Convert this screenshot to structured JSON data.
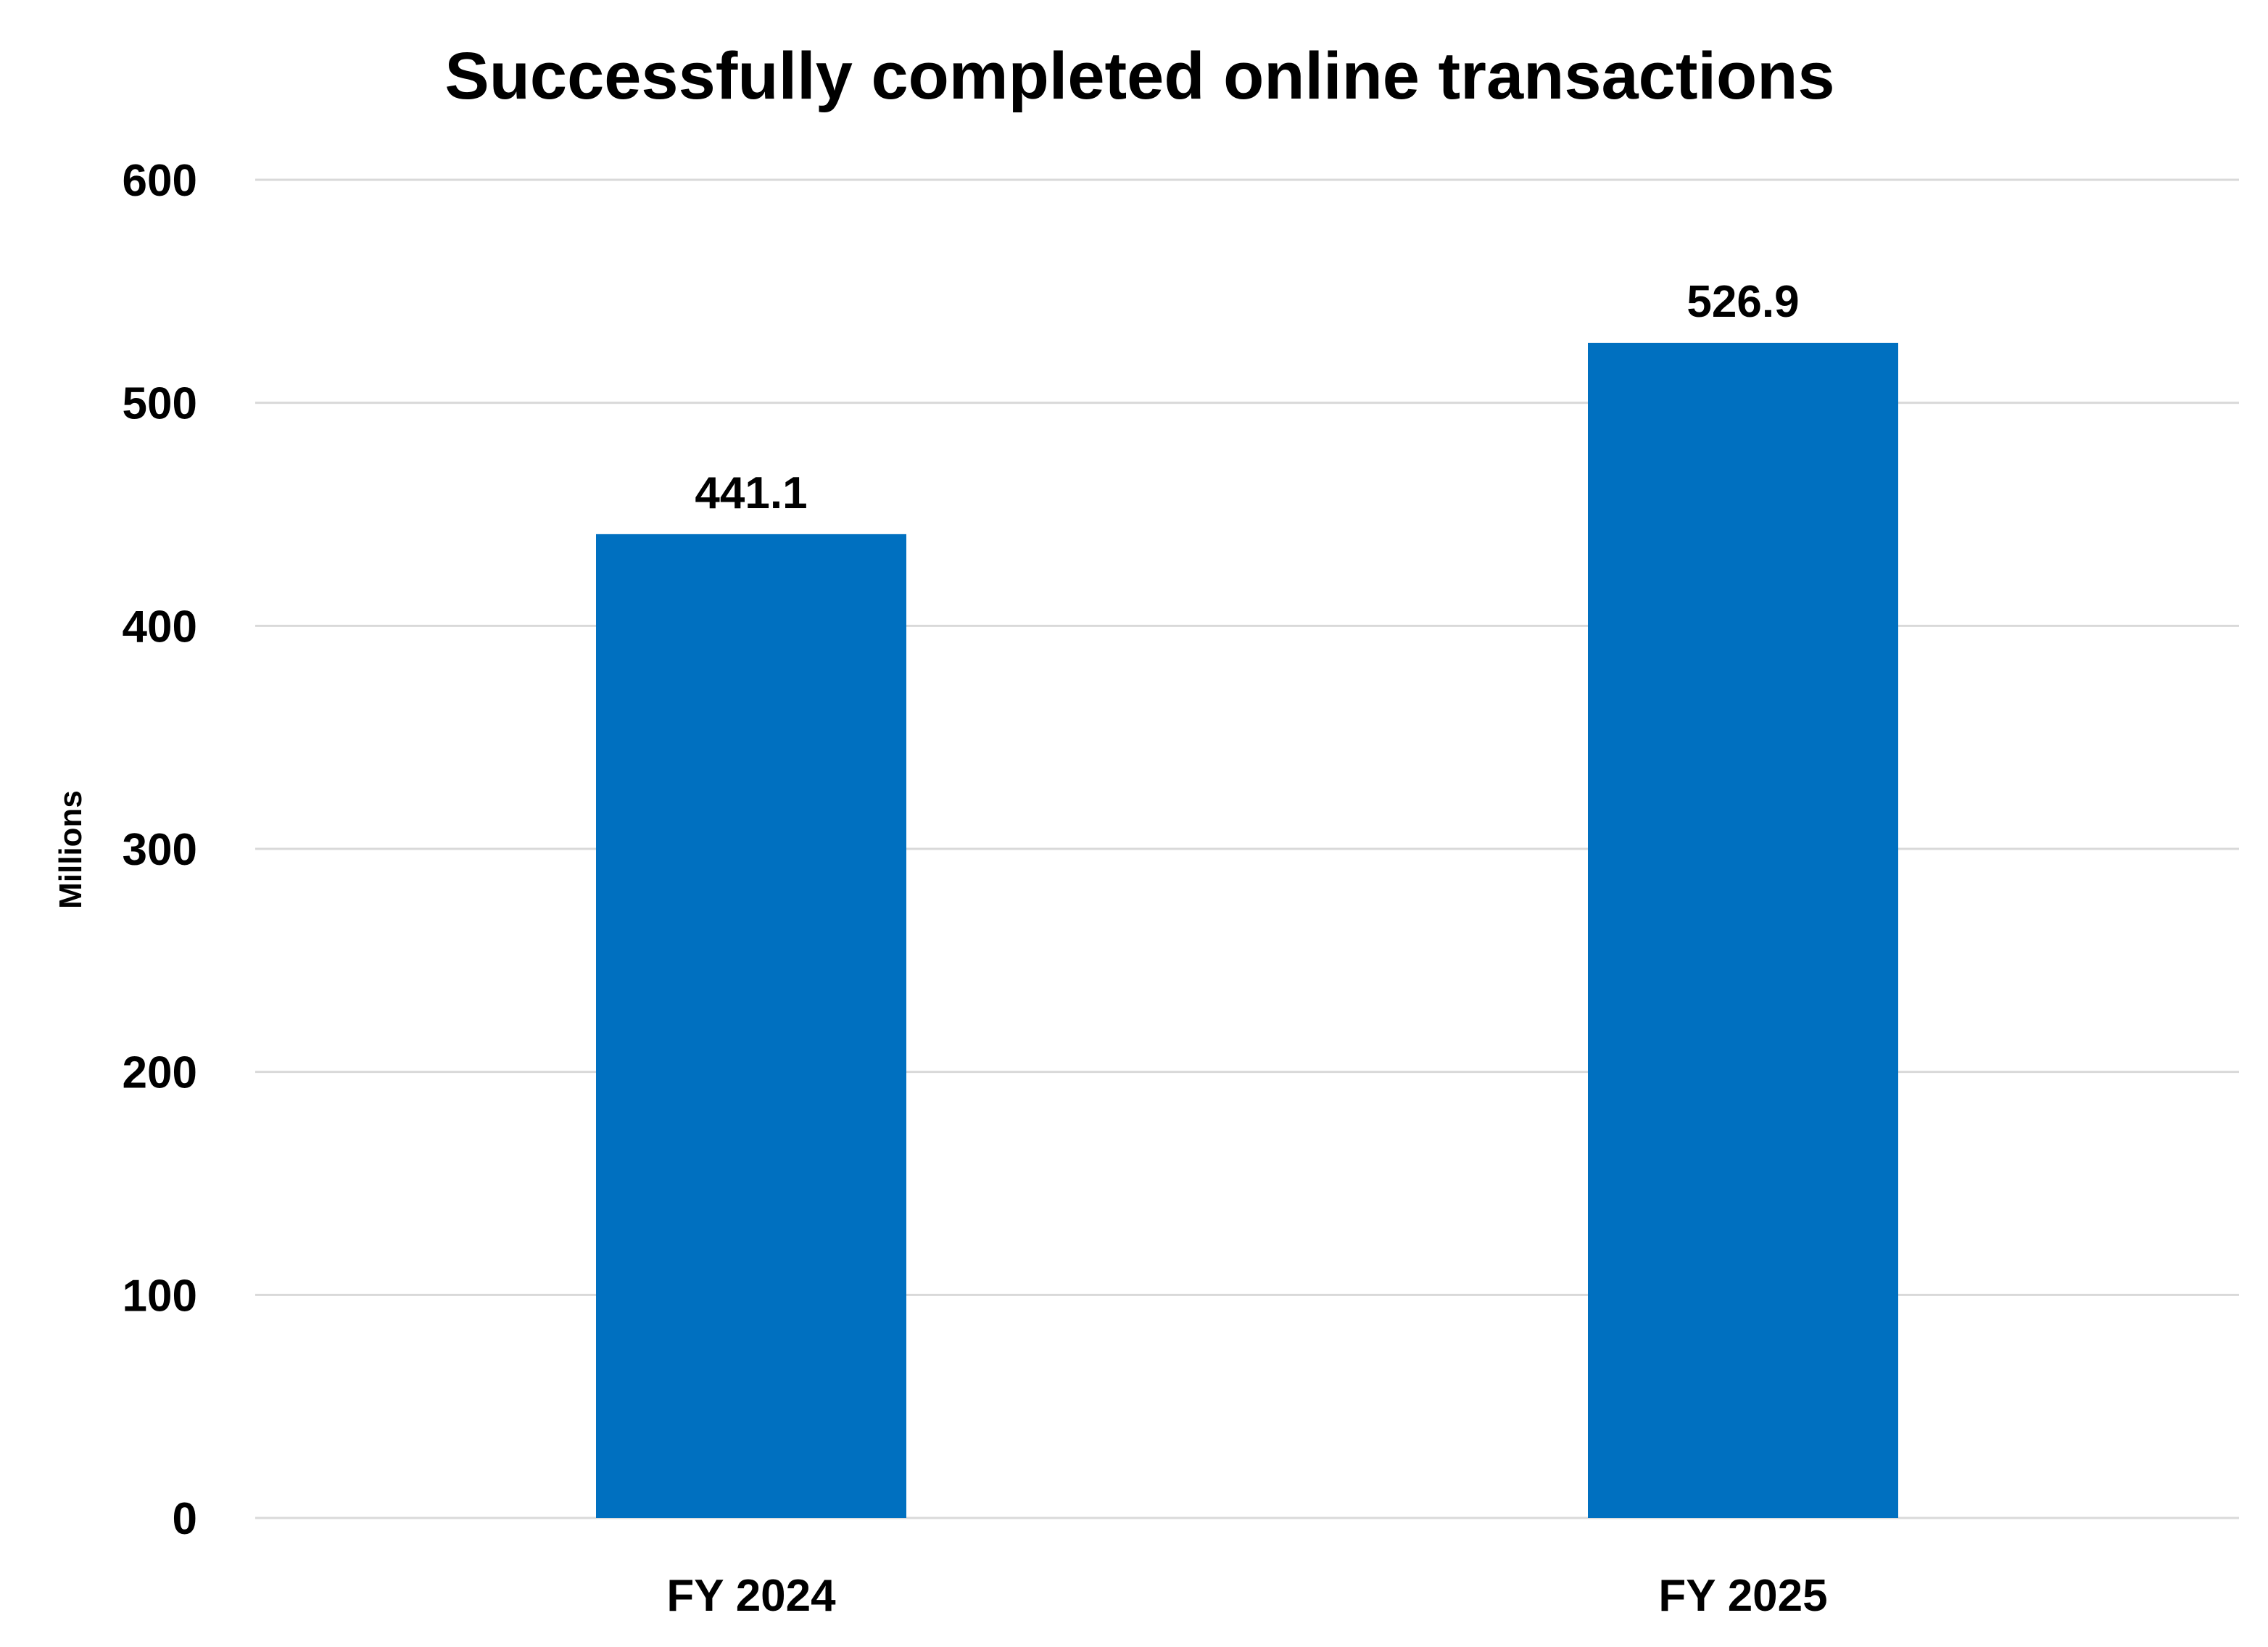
{
  "chart_data": {
    "type": "bar",
    "title": "Successfully completed online transactions",
    "xlabel": "",
    "ylabel": "Millions",
    "categories": [
      "FY 2024",
      "FY 2025"
    ],
    "values": [
      441.1,
      526.9
    ],
    "data_labels": [
      "441.1",
      "526.9"
    ],
    "ylim": [
      0,
      600
    ],
    "yticks": [
      0,
      100,
      200,
      300,
      400,
      500,
      600
    ],
    "ytick_labels": [
      "0",
      "100",
      "200",
      "300",
      "400",
      "500",
      "600"
    ],
    "grid": true,
    "legend": "none",
    "bar_color": "#0070C0"
  }
}
